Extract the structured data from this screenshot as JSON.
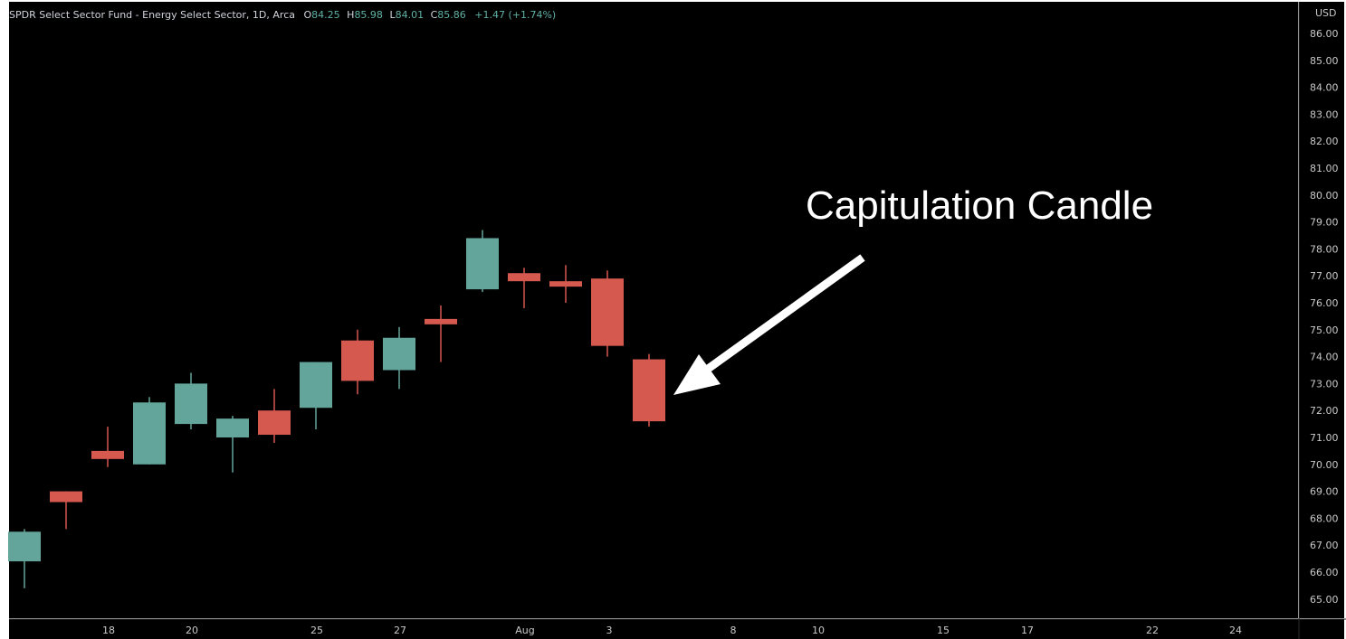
{
  "header": {
    "symbol_desc": "SPDR Select Sector Fund - Energy Select Sector, 1D, Arca",
    "ohlc": [
      {
        "label": "O",
        "value": "84.25"
      },
      {
        "label": "H",
        "value": "85.98"
      },
      {
        "label": "L",
        "value": "84.01"
      },
      {
        "label": "C",
        "value": "85.86"
      }
    ],
    "change": "+1.47 (+1.74%)"
  },
  "currency": "USD",
  "colors": {
    "background": "#000000",
    "up": "#63a59a",
    "down": "#d6594f",
    "wick_up": "#63a59a",
    "wick_down": "#d6594f",
    "axis_text": "#c9c9c9",
    "legend_text": "#d1d4dc",
    "legend_value": "#5fb1a4",
    "annotation": "#ffffff"
  },
  "chart_data": {
    "type": "candlestick",
    "x_axis": {
      "tick_labels": [
        "18",
        "20",
        "25",
        "27",
        "Aug",
        "3",
        "8",
        "10",
        "15",
        "17",
        "22",
        "24"
      ]
    },
    "y_axis": {
      "side": "right",
      "range": [
        64.3,
        87.1
      ],
      "tick_labels": [
        "86.00",
        "85.00",
        "84.00",
        "83.00",
        "82.00",
        "81.00",
        "80.00",
        "79.00",
        "78.00",
        "77.00",
        "76.00",
        "75.00",
        "74.00",
        "73.00",
        "72.00",
        "71.00",
        "70.00",
        "69.00",
        "68.00",
        "67.00",
        "66.00",
        "65.00"
      ]
    },
    "candles": [
      {
        "open": 66.4,
        "high": 67.6,
        "low": 65.4,
        "close": 67.5
      },
      {
        "open": 69.0,
        "high": 69.0,
        "low": 67.6,
        "close": 68.6
      },
      {
        "open": 70.5,
        "high": 71.4,
        "low": 69.9,
        "close": 70.2
      },
      {
        "open": 70.0,
        "high": 72.5,
        "low": 70.0,
        "close": 72.3
      },
      {
        "open": 71.5,
        "high": 73.4,
        "low": 71.3,
        "close": 73.0
      },
      {
        "open": 71.0,
        "high": 71.8,
        "low": 69.7,
        "close": 71.7
      },
      {
        "open": 72.0,
        "high": 72.8,
        "low": 70.8,
        "close": 71.1
      },
      {
        "open": 72.1,
        "high": 73.8,
        "low": 71.3,
        "close": 73.8
      },
      {
        "open": 74.6,
        "high": 75.0,
        "low": 72.6,
        "close": 73.1
      },
      {
        "open": 73.5,
        "high": 75.1,
        "low": 72.8,
        "close": 74.7
      },
      {
        "open": 75.4,
        "high": 75.9,
        "low": 73.8,
        "close": 75.2
      },
      {
        "open": 76.5,
        "high": 78.7,
        "low": 76.4,
        "close": 78.4
      },
      {
        "open": 77.1,
        "high": 77.3,
        "low": 75.8,
        "close": 76.8
      },
      {
        "open": 76.8,
        "high": 77.4,
        "low": 76.0,
        "close": 76.6
      },
      {
        "open": 76.9,
        "high": 77.2,
        "low": 74.0,
        "close": 74.4
      },
      {
        "open": 73.9,
        "high": 74.1,
        "low": 71.4,
        "close": 71.6
      }
    ],
    "annotation": {
      "text": "Capitulation Candle",
      "target_candle_index": 15
    }
  }
}
